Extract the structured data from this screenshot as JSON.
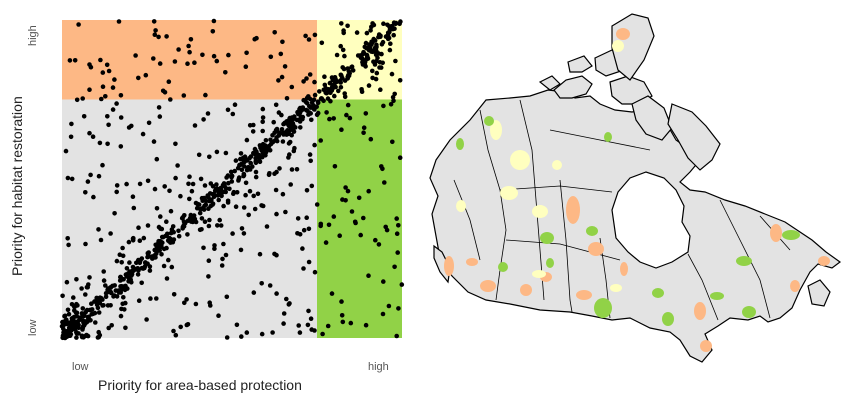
{
  "chart_data": {
    "type": "scatter",
    "xlabel": "Priority for area-based protection",
    "ylabel": "Priority for habitat restoration",
    "x_ticks": [
      "low",
      "high"
    ],
    "y_ticks": [
      "low",
      "high"
    ],
    "xlim": [
      0,
      1
    ],
    "ylim": [
      0,
      1
    ],
    "quadrant_threshold": 0.75,
    "regions": [
      {
        "id": "high-restoration",
        "color": "#fdb885"
      },
      {
        "id": "high-both",
        "color": "#ffffbf"
      },
      {
        "id": "high-protection",
        "color": "#91d247"
      },
      {
        "id": "low-both",
        "color": "#e3e3e3"
      }
    ],
    "point_color": "#000000"
  },
  "map": {
    "land_color": "#e3e3e3",
    "border_color": "#000000",
    "water_color": "#ffffff",
    "class_colors": {
      "high-protection": "#91d247",
      "high-restoration": "#fdb885",
      "high-both": "#ffffbf"
    }
  }
}
